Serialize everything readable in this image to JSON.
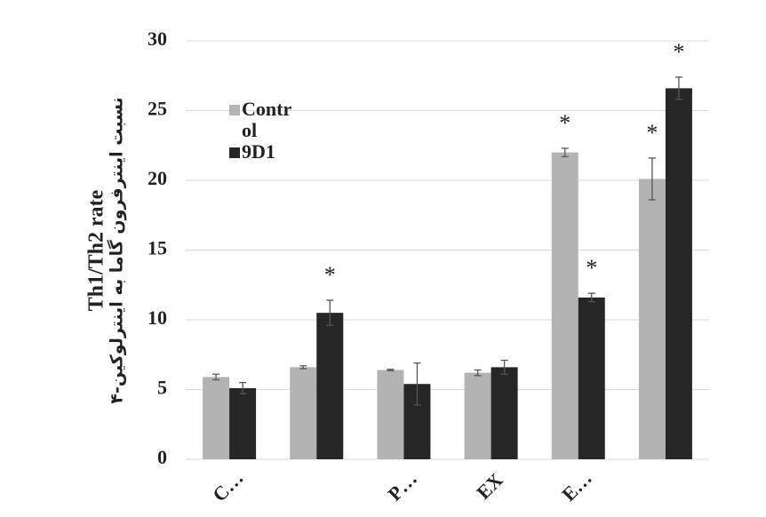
{
  "chart_data": {
    "type": "bar",
    "y_label": "Th1/Th2 rate",
    "y_label_secondary": "نسبت اینترفرون گاما به اینترلوکین-۴",
    "categories": [
      "C…",
      null,
      "P…",
      "EX",
      "E…",
      null
    ],
    "series": [
      {
        "name": "Control",
        "color": "#b3b3b3",
        "values": [
          5.9,
          6.6,
          6.4,
          6.2,
          22.0,
          20.1
        ],
        "errors": [
          0.2,
          0.1,
          0.05,
          0.2,
          0.3,
          1.5
        ]
      },
      {
        "name": "9D1",
        "color": "#262626",
        "values": [
          5.1,
          10.5,
          5.4,
          6.6,
          11.6,
          26.6
        ],
        "errors": [
          0.4,
          0.9,
          1.5,
          0.5,
          0.3,
          0.8
        ]
      }
    ],
    "annotations": [
      {
        "text": "*",
        "series": 1,
        "category": 1
      },
      {
        "text": "*",
        "series": 0,
        "category": 4
      },
      {
        "text": "*",
        "series": 1,
        "category": 4
      },
      {
        "text": "*",
        "series": 0,
        "category": 5
      },
      {
        "text": "*",
        "series": 1,
        "category": 5
      }
    ],
    "ylim": [
      0,
      30
    ],
    "yticks": [
      0,
      5,
      10,
      15,
      20,
      25,
      30
    ],
    "grid": true
  }
}
